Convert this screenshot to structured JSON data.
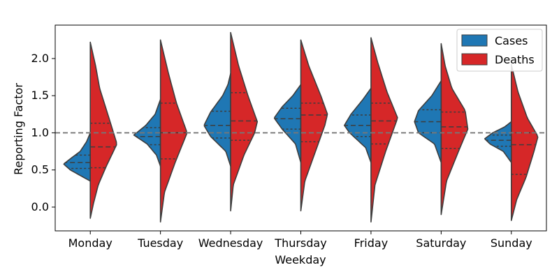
{
  "chart_data": {
    "type": "violin",
    "split": true,
    "xlabel": "Weekday",
    "ylabel": "Reporting Factor",
    "ylim": [
      -0.32,
      2.45
    ],
    "yticks": [
      0.0,
      0.5,
      1.0,
      1.5,
      2.0
    ],
    "ytick_labels": [
      "0.0",
      "0.5",
      "1.0",
      "1.5",
      "2.0"
    ],
    "reference_line": {
      "y": 1.0,
      "style": "dashed",
      "color": "#777777"
    },
    "categories": [
      "Monday",
      "Tuesday",
      "Wednesday",
      "Thursday",
      "Friday",
      "Saturday",
      "Sunday"
    ],
    "legend": {
      "position": "top-right",
      "entries": [
        "Cases",
        "Deaths"
      ]
    },
    "series": [
      {
        "name": "Cases",
        "side": "left",
        "color": "#1f77b4",
        "violins": [
          {
            "min": 0.35,
            "max": 1.0,
            "q1": 0.52,
            "median": 0.6,
            "q3": 0.7,
            "density": [
              [
                0.35,
                0.0
              ],
              [
                0.42,
                0.35
              ],
              [
                0.5,
                0.75
              ],
              [
                0.58,
                1.0
              ],
              [
                0.65,
                0.75
              ],
              [
                0.75,
                0.38
              ],
              [
                0.88,
                0.14
              ],
              [
                1.0,
                0.0
              ]
            ]
          },
          {
            "min": 0.55,
            "max": 1.45,
            "q1": 0.84,
            "median": 0.95,
            "q3": 1.07,
            "density": [
              [
                0.55,
                0.0
              ],
              [
                0.7,
                0.15
              ],
              [
                0.85,
                0.5
              ],
              [
                0.97,
                1.0
              ],
              [
                1.1,
                0.55
              ],
              [
                1.25,
                0.2
              ],
              [
                1.45,
                0.0
              ]
            ]
          },
          {
            "min": 0.55,
            "max": 1.8,
            "q1": 0.93,
            "median": 1.1,
            "q3": 1.29,
            "density": [
              [
                0.55,
                0.0
              ],
              [
                0.75,
                0.18
              ],
              [
                0.95,
                0.75
              ],
              [
                1.1,
                1.0
              ],
              [
                1.28,
                0.75
              ],
              [
                1.5,
                0.3
              ],
              [
                1.65,
                0.1
              ],
              [
                1.8,
                0.0
              ]
            ]
          },
          {
            "min": 0.6,
            "max": 1.65,
            "q1": 1.05,
            "median": 1.19,
            "q3": 1.33,
            "density": [
              [
                0.6,
                0.0
              ],
              [
                0.85,
                0.2
              ],
              [
                1.05,
                0.7
              ],
              [
                1.2,
                1.0
              ],
              [
                1.35,
                0.7
              ],
              [
                1.5,
                0.3
              ],
              [
                1.65,
                0.0
              ]
            ]
          },
          {
            "min": 0.6,
            "max": 1.6,
            "q1": 0.95,
            "median": 1.1,
            "q3": 1.24,
            "density": [
              [
                0.6,
                0.0
              ],
              [
                0.8,
                0.2
              ],
              [
                1.0,
                0.8
              ],
              [
                1.1,
                1.0
              ],
              [
                1.25,
                0.75
              ],
              [
                1.45,
                0.3
              ],
              [
                1.6,
                0.0
              ]
            ]
          },
          {
            "min": 0.6,
            "max": 1.7,
            "q1": 1.0,
            "median": 1.15,
            "q3": 1.31,
            "density": [
              [
                0.6,
                0.0
              ],
              [
                0.85,
                0.25
              ],
              [
                1.0,
                0.85
              ],
              [
                1.15,
                1.0
              ],
              [
                1.3,
                0.85
              ],
              [
                1.5,
                0.35
              ],
              [
                1.7,
                0.0
              ]
            ]
          },
          {
            "min": 0.6,
            "max": 1.15,
            "q1": 0.82,
            "median": 0.9,
            "q3": 0.97,
            "density": [
              [
                0.6,
                0.0
              ],
              [
                0.75,
                0.3
              ],
              [
                0.85,
                0.8
              ],
              [
                0.92,
                1.0
              ],
              [
                1.0,
                0.7
              ],
              [
                1.08,
                0.25
              ],
              [
                1.15,
                0.0
              ]
            ]
          }
        ]
      },
      {
        "name": "Deaths",
        "side": "right",
        "color": "#d62728",
        "violins": [
          {
            "min": -0.15,
            "max": 2.22,
            "q1": 0.53,
            "median": 0.81,
            "q3": 1.13,
            "density": [
              [
                -0.15,
                0.0
              ],
              [
                0.05,
                0.12
              ],
              [
                0.3,
                0.3
              ],
              [
                0.55,
                0.6
              ],
              [
                0.85,
                1.0
              ],
              [
                1.2,
                0.7
              ],
              [
                1.6,
                0.35
              ],
              [
                1.9,
                0.2
              ],
              [
                2.22,
                0.0
              ]
            ]
          },
          {
            "min": -0.2,
            "max": 2.25,
            "q1": 0.65,
            "median": 1.0,
            "q3": 1.4,
            "density": [
              [
                -0.2,
                0.0
              ],
              [
                0.2,
                0.15
              ],
              [
                0.6,
                0.55
              ],
              [
                1.0,
                1.0
              ],
              [
                1.4,
                0.6
              ],
              [
                1.8,
                0.3
              ],
              [
                2.1,
                0.1
              ],
              [
                2.25,
                0.0
              ]
            ]
          },
          {
            "min": -0.05,
            "max": 2.35,
            "q1": 0.9,
            "median": 1.16,
            "q3": 1.54,
            "density": [
              [
                -0.05,
                0.0
              ],
              [
                0.3,
                0.1
              ],
              [
                0.7,
                0.5
              ],
              [
                1.0,
                0.9
              ],
              [
                1.15,
                1.0
              ],
              [
                1.5,
                0.65
              ],
              [
                1.9,
                0.3
              ],
              [
                2.2,
                0.1
              ],
              [
                2.35,
                0.0
              ]
            ]
          },
          {
            "min": -0.05,
            "max": 2.25,
            "q1": 0.88,
            "median": 1.24,
            "q3": 1.4,
            "density": [
              [
                -0.05,
                0.0
              ],
              [
                0.35,
                0.15
              ],
              [
                0.75,
                0.55
              ],
              [
                1.1,
                0.9
              ],
              [
                1.25,
                1.0
              ],
              [
                1.5,
                0.75
              ],
              [
                1.9,
                0.3
              ],
              [
                2.25,
                0.0
              ]
            ]
          },
          {
            "min": -0.2,
            "max": 2.28,
            "q1": 0.85,
            "median": 1.16,
            "q3": 1.4,
            "density": [
              [
                -0.2,
                0.0
              ],
              [
                0.3,
                0.15
              ],
              [
                0.75,
                0.55
              ],
              [
                1.1,
                0.9
              ],
              [
                1.2,
                1.0
              ],
              [
                1.55,
                0.6
              ],
              [
                1.95,
                0.25
              ],
              [
                2.28,
                0.0
              ]
            ]
          },
          {
            "min": -0.1,
            "max": 2.2,
            "q1": 0.79,
            "median": 1.08,
            "q3": 1.28,
            "density": [
              [
                -0.1,
                0.0
              ],
              [
                0.35,
                0.2
              ],
              [
                0.75,
                0.65
              ],
              [
                1.05,
                1.0
              ],
              [
                1.3,
                0.9
              ],
              [
                1.6,
                0.4
              ],
              [
                1.9,
                0.15
              ],
              [
                2.2,
                0.0
              ]
            ]
          },
          {
            "min": -0.18,
            "max": 1.92,
            "q1": 0.44,
            "median": 0.84,
            "q3": 1.0,
            "density": [
              [
                -0.18,
                0.0
              ],
              [
                0.1,
                0.2
              ],
              [
                0.4,
                0.55
              ],
              [
                0.75,
                0.85
              ],
              [
                0.95,
                1.0
              ],
              [
                1.2,
                0.6
              ],
              [
                1.55,
                0.25
              ],
              [
                1.92,
                0.0
              ]
            ]
          }
        ]
      }
    ]
  }
}
